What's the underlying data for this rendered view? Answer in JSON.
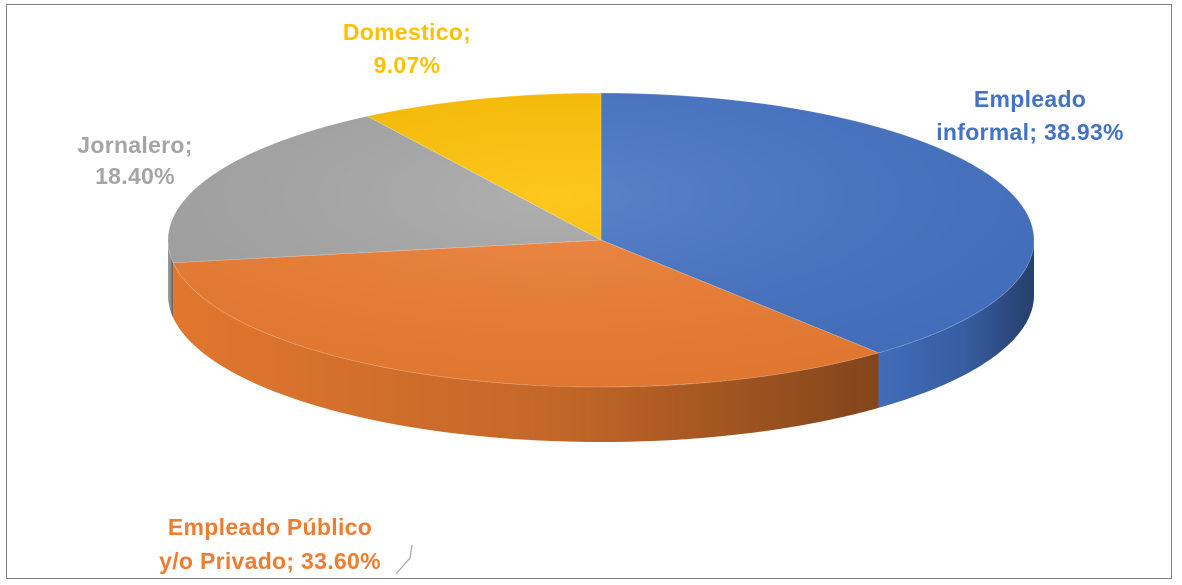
{
  "chart_data": {
    "type": "pie",
    "style": "3d",
    "title": "",
    "slices": [
      {
        "label_line1": "Empleado",
        "label_line2": "informal; 38.93%",
        "name": "Empleado informal",
        "value": 38.93,
        "color": "#4472C4",
        "side_color": "#203864"
      },
      {
        "label_line1": "Empleado Público",
        "label_line2": "y/o Privado; 33.60%",
        "name": "Empleado Público y/o Privado",
        "value": 33.6,
        "color": "#ED7D31",
        "side_color": "#843C0C"
      },
      {
        "label_line1": "Jornalero;",
        "label_line2": "18.40%",
        "name": "Jornalero",
        "value": 18.4,
        "color": "#A5A5A5",
        "side_color": "#6D6D6D"
      },
      {
        "label_line1": "Domestico;",
        "label_line2": "9.07%",
        "name": "Domestico",
        "value": 9.07,
        "color": "#FFC000",
        "side_color": "#B08500"
      }
    ]
  }
}
